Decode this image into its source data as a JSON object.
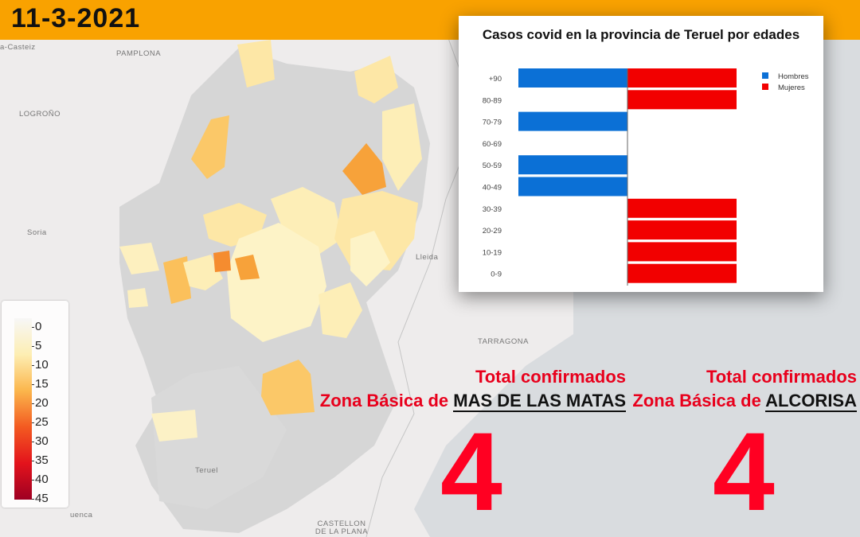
{
  "header": {
    "date": "11-3-2021"
  },
  "map": {
    "cities": [
      "PAMPLONA",
      "LOGROÑO",
      "Soria",
      "Lleida",
      "TARRAGONA",
      "Teruel",
      "CASTELLON DE LA PLANA",
      "uenca",
      "a-Casteiz"
    ],
    "legend_ticks": [
      "0",
      "5",
      "10",
      "15",
      "20",
      "25",
      "30",
      "35",
      "40",
      "45"
    ]
  },
  "chart_data": {
    "type": "bar",
    "title": "Casos covid en la provincia de Teruel por edades",
    "categories": [
      "+90",
      "80-89",
      "70-79",
      "60-69",
      "50-59",
      "40-49",
      "30-39",
      "20-29",
      "10-19",
      "0-9"
    ],
    "series": [
      {
        "name": "Hombres",
        "color": "#0b70d6",
        "values": [
          1,
          0,
          1,
          0,
          1,
          1,
          0,
          0,
          0,
          0
        ]
      },
      {
        "name": "Mujeres",
        "color": "#f20000",
        "values": [
          1,
          1,
          0,
          0,
          0,
          0,
          1,
          1,
          1,
          1
        ]
      }
    ],
    "legend_position": "top-right"
  },
  "totals": [
    {
      "line1": "Total confirmados",
      "prefix": "Zona Básica de ",
      "zone": "MAS DE LAS MATAS",
      "value": "4"
    },
    {
      "line1": "Total confirmados",
      "prefix": "Zona Básica de ",
      "zone": "ALCORISA",
      "value": "4"
    }
  ]
}
